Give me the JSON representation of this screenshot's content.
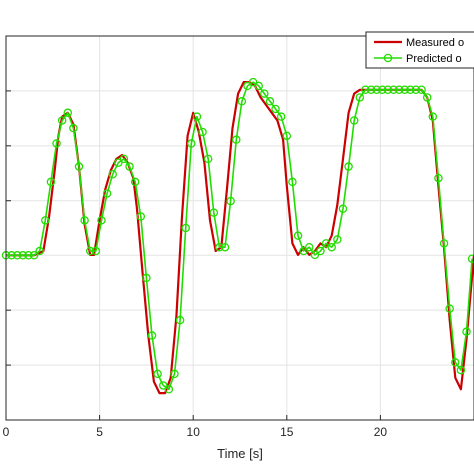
{
  "chart_data": {
    "type": "line",
    "title": "",
    "xlabel": "Time [s]",
    "ylabel": "",
    "xlim": [
      0,
      25
    ],
    "ylim": [
      0,
      1
    ],
    "x_ticks": [
      0,
      5,
      10,
      15,
      20
    ],
    "x_tick_labels": [
      "0",
      "5",
      "10",
      "15",
      "20"
    ],
    "y_ticks": [
      0,
      0.143,
      0.286,
      0.429,
      0.571,
      0.714,
      0.857,
      1.0
    ],
    "grid": true,
    "legend": {
      "placement": "top-right",
      "entries": [
        "Measured o",
        "Predicted o"
      ]
    },
    "colors": {
      "measured": "#cc0000",
      "predicted": "#22dd00"
    },
    "series": [
      {
        "name": "Measured o",
        "style": "line",
        "x": [
          0,
          1.5,
          2.0,
          2.3,
          2.6,
          2.8,
          3.0,
          3.3,
          3.6,
          3.9,
          4.2,
          4.5,
          4.7,
          5.0,
          5.3,
          5.6,
          5.9,
          6.2,
          6.5,
          6.8,
          7.0,
          7.3,
          7.6,
          7.9,
          8.2,
          8.5,
          8.8,
          9.1,
          9.4,
          9.7,
          10.0,
          10.3,
          10.6,
          10.9,
          11.2,
          11.5,
          11.8,
          12.1,
          12.4,
          12.7,
          13.0,
          13.3,
          13.6,
          13.9,
          14.2,
          14.5,
          14.8,
          15.0,
          15.3,
          15.6,
          15.9,
          16.2,
          16.5,
          16.8,
          17.1,
          17.4,
          17.7,
          18.0,
          18.3,
          18.6,
          18.9,
          19.2,
          19.5,
          19.8,
          20.2,
          20.6,
          21.0,
          21.4,
          21.8,
          22.2,
          22.5,
          22.8,
          23.1,
          23.4,
          23.7,
          24.0,
          24.3,
          24.6,
          25.0
        ],
        "y": [
          0.429,
          0.429,
          0.44,
          0.53,
          0.65,
          0.74,
          0.79,
          0.8,
          0.77,
          0.66,
          0.51,
          0.43,
          0.43,
          0.52,
          0.6,
          0.65,
          0.68,
          0.69,
          0.67,
          0.63,
          0.55,
          0.38,
          0.22,
          0.1,
          0.07,
          0.07,
          0.11,
          0.27,
          0.53,
          0.74,
          0.8,
          0.75,
          0.67,
          0.52,
          0.44,
          0.45,
          0.6,
          0.76,
          0.85,
          0.88,
          0.88,
          0.87,
          0.84,
          0.82,
          0.8,
          0.78,
          0.73,
          0.61,
          0.46,
          0.43,
          0.45,
          0.43,
          0.44,
          0.46,
          0.45,
          0.48,
          0.56,
          0.68,
          0.8,
          0.85,
          0.86,
          0.86,
          0.86,
          0.86,
          0.86,
          0.86,
          0.86,
          0.86,
          0.86,
          0.86,
          0.84,
          0.78,
          0.61,
          0.45,
          0.26,
          0.11,
          0.08,
          0.21,
          0.43
        ]
      },
      {
        "name": "Predicted o",
        "style": "line-marker",
        "x": [
          0,
          0.3,
          0.6,
          0.9,
          1.2,
          1.5,
          1.8,
          2.1,
          2.4,
          2.7,
          3.0,
          3.3,
          3.6,
          3.9,
          4.2,
          4.5,
          4.8,
          5.1,
          5.4,
          5.7,
          6.0,
          6.3,
          6.6,
          6.9,
          7.2,
          7.5,
          7.8,
          8.1,
          8.4,
          8.7,
          9.0,
          9.3,
          9.6,
          9.9,
          10.2,
          10.5,
          10.8,
          11.1,
          11.4,
          11.7,
          12.0,
          12.3,
          12.6,
          12.9,
          13.2,
          13.5,
          13.8,
          14.1,
          14.4,
          14.7,
          15.0,
          15.3,
          15.6,
          15.9,
          16.2,
          16.5,
          16.8,
          17.1,
          17.4,
          17.7,
          18.0,
          18.3,
          18.6,
          18.9,
          19.2,
          19.5,
          19.8,
          20.1,
          20.4,
          20.7,
          21.0,
          21.3,
          21.6,
          21.9,
          22.2,
          22.5,
          22.8,
          23.1,
          23.4,
          23.7,
          24.0,
          24.3,
          24.6,
          24.9
        ],
        "y": [
          0.429,
          0.429,
          0.429,
          0.429,
          0.429,
          0.429,
          0.44,
          0.52,
          0.62,
          0.72,
          0.78,
          0.8,
          0.76,
          0.66,
          0.52,
          0.44,
          0.44,
          0.52,
          0.59,
          0.64,
          0.67,
          0.68,
          0.66,
          0.62,
          0.53,
          0.37,
          0.22,
          0.12,
          0.09,
          0.08,
          0.12,
          0.26,
          0.5,
          0.72,
          0.79,
          0.75,
          0.68,
          0.54,
          0.45,
          0.45,
          0.57,
          0.73,
          0.83,
          0.87,
          0.88,
          0.87,
          0.85,
          0.83,
          0.81,
          0.79,
          0.74,
          0.62,
          0.48,
          0.44,
          0.45,
          0.43,
          0.44,
          0.46,
          0.45,
          0.47,
          0.55,
          0.66,
          0.78,
          0.84,
          0.86,
          0.86,
          0.86,
          0.86,
          0.86,
          0.86,
          0.86,
          0.86,
          0.86,
          0.86,
          0.86,
          0.84,
          0.79,
          0.63,
          0.46,
          0.29,
          0.15,
          0.13,
          0.23,
          0.42
        ]
      }
    ]
  }
}
